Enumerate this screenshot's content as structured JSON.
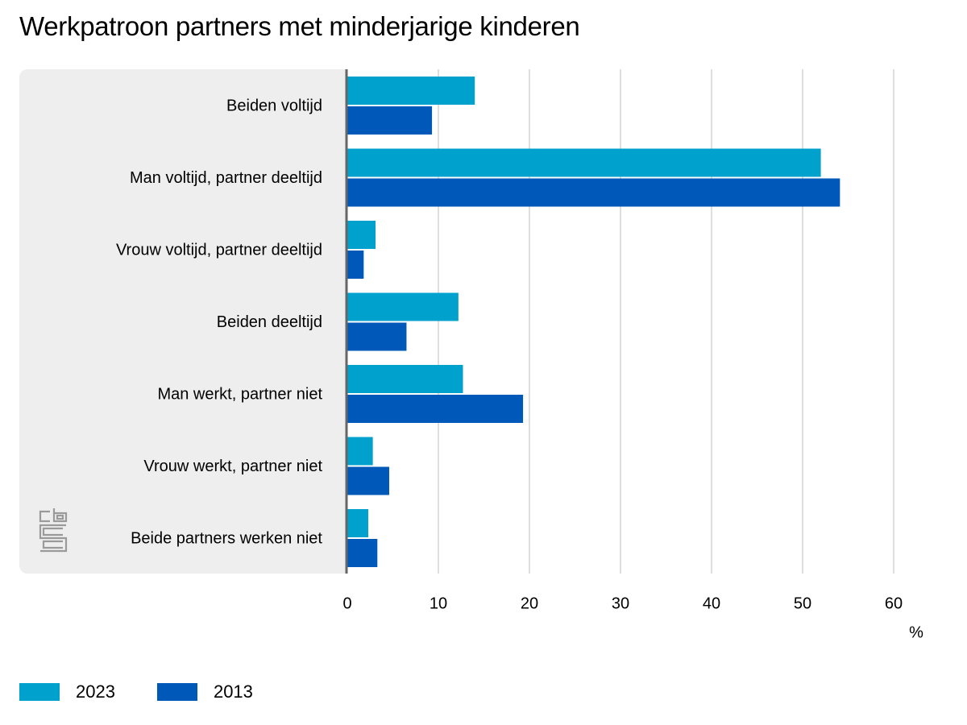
{
  "chart_data": {
    "type": "bar",
    "orientation": "horizontal",
    "title": "Werkpatroon partners met minderjarige kinderen",
    "categories": [
      "Beiden voltijd",
      "Man voltijd, partner deeltijd",
      "Vrouw voltijd, partner deeltijd",
      "Beiden deeltijd",
      "Man werkt, partner niet",
      "Vrouw werkt, partner niet",
      "Beide partners werken niet"
    ],
    "series": [
      {
        "name": "2023",
        "color": "#00a1cd",
        "values": [
          14.0,
          52.0,
          3.1,
          12.2,
          12.7,
          2.8,
          2.3
        ]
      },
      {
        "name": "2013",
        "color": "#0058b8",
        "values": [
          9.3,
          54.1,
          1.8,
          6.5,
          19.3,
          4.6,
          3.3
        ]
      }
    ],
    "xlabel": "%",
    "xlim": [
      0,
      60
    ],
    "xticks": [
      0,
      10,
      20,
      30,
      40,
      50,
      60
    ],
    "grid": true,
    "legend_position": "bottom-left"
  },
  "logo": {
    "name": "cbs-logo-icon",
    "color": "#9a9a9a"
  }
}
